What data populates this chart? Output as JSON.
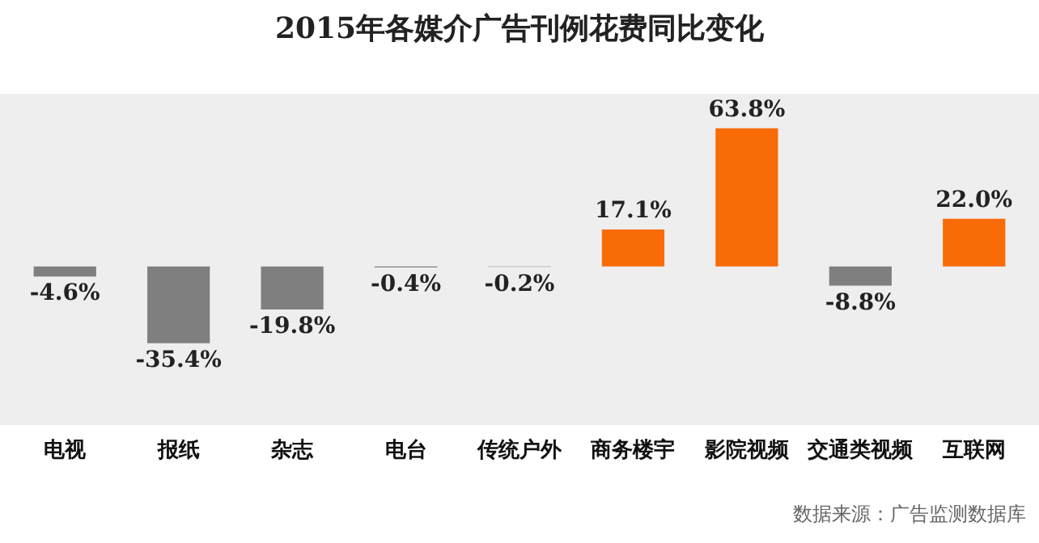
{
  "chart_data": {
    "type": "bar",
    "title": "2015年各媒介广告刊例花费同比变化",
    "categories": [
      "电视",
      "报纸",
      "杂志",
      "电台",
      "传统户外",
      "商务楼宇",
      "影院视频",
      "交通类视频",
      "互联网"
    ],
    "values": [
      -4.6,
      -35.4,
      -19.8,
      -0.4,
      -0.2,
      17.1,
      63.8,
      -8.8,
      22.0
    ],
    "colors": [
      "#7f7f7f",
      "#7f7f7f",
      "#7f7f7f",
      "#7f7f7f",
      "#7f7f7f",
      "#f96b07",
      "#f96b07",
      "#7f7f7f",
      "#f96b07"
    ],
    "value_labels": [
      "-4.6%",
      "-35.4%",
      "-19.8%",
      "-0.4%",
      "-0.2%",
      "17.1%",
      "63.8%",
      "-8.8%",
      "22.0%"
    ],
    "annotations": [
      "数据来源：广告监测数据库"
    ]
  }
}
